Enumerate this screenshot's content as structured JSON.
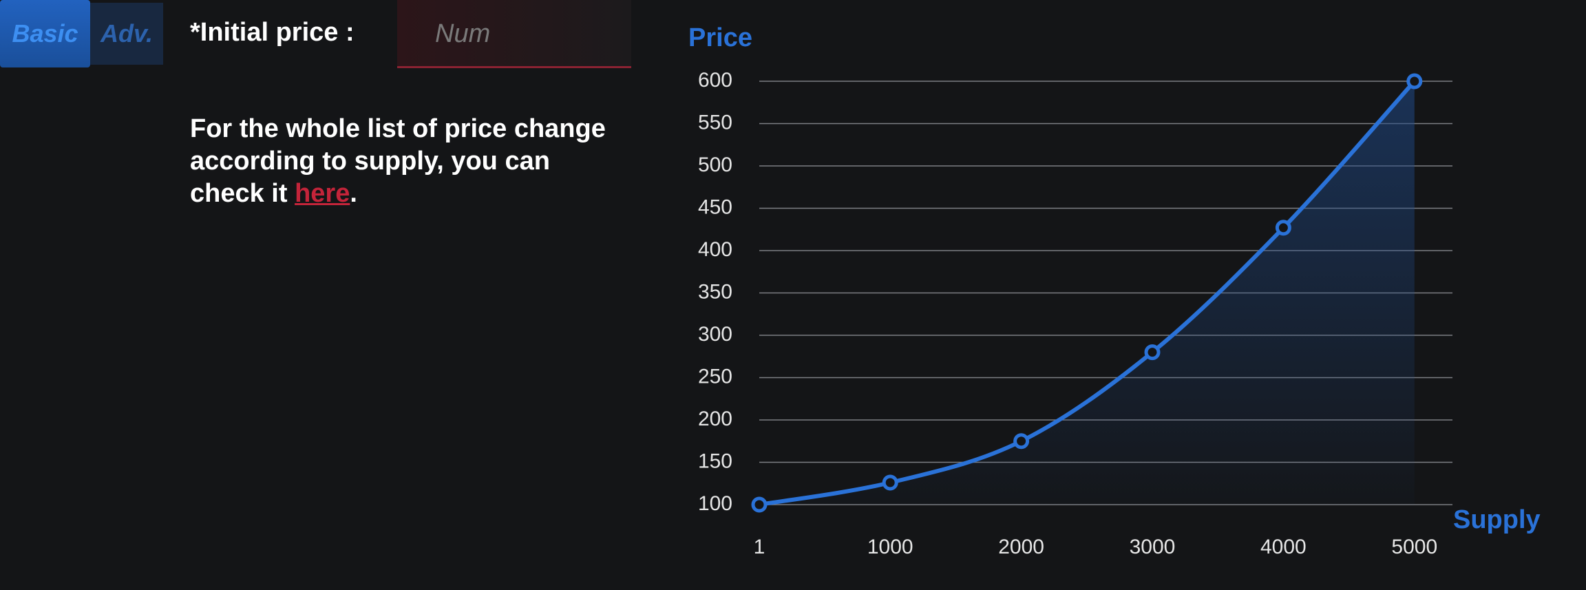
{
  "tabs": [
    "Basic",
    "Adv."
  ],
  "form": {
    "label": "*Initial price :",
    "placeholder": "Num"
  },
  "note": {
    "text": "For the whole list of price change according to supply, you can check it ",
    "link": "here",
    "end": "."
  },
  "chart_data": {
    "type": "line",
    "y_label": "Price",
    "x_label": "Supply",
    "x": [
      1,
      1000,
      2000,
      3000,
      4000,
      5000
    ],
    "values": [
      100,
      126,
      175,
      280,
      427,
      600
    ],
    "color": "#2a72d8",
    "xlim": [
      1,
      5290
    ],
    "xticks": [
      1,
      1000,
      2000,
      3000,
      4000,
      5000
    ],
    "ylim": [
      100,
      600
    ],
    "yticks": [
      100,
      150,
      200,
      250,
      300,
      350,
      400,
      450,
      500,
      550,
      600
    ],
    "grid": true,
    "area": true
  }
}
